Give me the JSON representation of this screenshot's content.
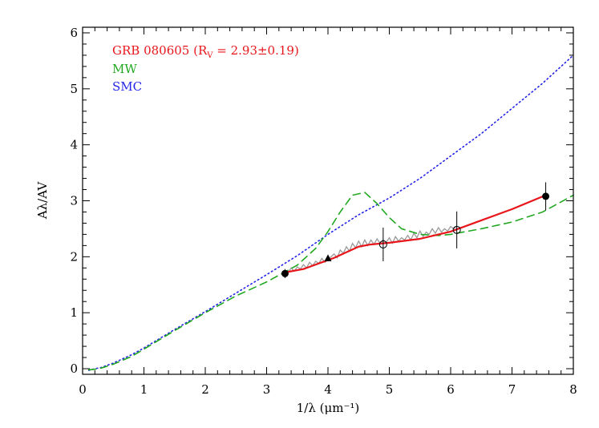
{
  "chart_data": {
    "type": "line",
    "xlabel": "1/λ (μm⁻¹)",
    "ylabel": "Aλ/AV",
    "xlim": [
      0,
      8
    ],
    "ylim": [
      -0.1,
      6.1
    ],
    "x_ticks": [
      "0",
      "1",
      "2",
      "3",
      "4",
      "5",
      "6",
      "7",
      "8"
    ],
    "y_ticks": [
      "0",
      "1",
      "2",
      "3",
      "4",
      "5",
      "6"
    ],
    "legend": {
      "placement": "top-left",
      "entries": [
        {
          "label_main": "GRB 080605 (R",
          "label_sub": "V",
          "label_tail": " = 2.93±0.19)",
          "color": "#e8161b"
        },
        {
          "label_main": "MW",
          "color": "#22a822"
        },
        {
          "label_main": "SMC",
          "color": "#2424e8"
        }
      ]
    },
    "series": [
      {
        "name": "SMC",
        "color": "#2424e8",
        "style": "dotted",
        "x": [
          0.1,
          0.2,
          0.3,
          0.5,
          0.8,
          1.0,
          1.5,
          2.0,
          2.5,
          3.0,
          3.5,
          4.0,
          4.5,
          5.0,
          5.5,
          6.0,
          6.5,
          7.0,
          7.5,
          8.0
        ],
        "y": [
          -0.03,
          0.0,
          0.02,
          0.1,
          0.25,
          0.37,
          0.7,
          1.02,
          1.35,
          1.68,
          2.02,
          2.4,
          2.75,
          3.05,
          3.4,
          3.8,
          4.2,
          4.65,
          5.1,
          5.6
        ]
      },
      {
        "name": "MW",
        "color": "#22a822",
        "style": "dashed",
        "x": [
          0.1,
          0.2,
          0.3,
          0.5,
          0.8,
          1.0,
          1.5,
          2.0,
          2.5,
          3.0,
          3.5,
          3.8,
          4.0,
          4.2,
          4.4,
          4.6,
          4.8,
          5.0,
          5.2,
          5.5,
          5.8,
          6.0,
          6.5,
          7.0,
          7.5,
          8.0
        ],
        "y": [
          -0.02,
          -0.01,
          0.01,
          0.08,
          0.22,
          0.35,
          0.68,
          1.0,
          1.3,
          1.55,
          1.85,
          2.15,
          2.45,
          2.8,
          3.1,
          3.15,
          2.95,
          2.7,
          2.5,
          2.4,
          2.38,
          2.4,
          2.5,
          2.62,
          2.8,
          3.1
        ]
      },
      {
        "name": "GRB 080605",
        "color": "#e8161b",
        "style": "solid",
        "x": [
          3.3,
          3.6,
          3.9,
          4.1,
          4.3,
          4.5,
          4.7,
          5.0,
          5.5,
          6.0,
          6.5,
          7.0,
          7.55
        ],
        "y": [
          1.72,
          1.78,
          1.9,
          1.98,
          2.08,
          2.18,
          2.22,
          2.25,
          2.32,
          2.45,
          2.65,
          2.85,
          3.1
        ]
      }
    ],
    "spectrum": {
      "name": "spectrum",
      "color": "#9a9a9a",
      "x": [
        3.3,
        3.35,
        3.4,
        3.45,
        3.5,
        3.55,
        3.6,
        3.65,
        3.7,
        3.75,
        3.8,
        3.85,
        3.9,
        3.95,
        4.0,
        4.05,
        4.1,
        4.15,
        4.2,
        4.25,
        4.3,
        4.35,
        4.4,
        4.45,
        4.5,
        4.55,
        4.6,
        4.65,
        4.7,
        4.75,
        4.8,
        4.85,
        4.9,
        4.95,
        5.0,
        5.05,
        5.1,
        5.15,
        5.2,
        5.25,
        5.3,
        5.35,
        5.4,
        5.45,
        5.5,
        5.55,
        5.6,
        5.65,
        5.7,
        5.75,
        5.8,
        5.85,
        5.9,
        5.95,
        6.0,
        6.05,
        6.1
      ],
      "y": [
        1.74,
        1.72,
        1.8,
        1.74,
        1.82,
        1.78,
        1.86,
        1.8,
        1.9,
        1.84,
        1.92,
        1.88,
        1.97,
        1.9,
        1.95,
        2.0,
        2.05,
        1.98,
        2.12,
        2.06,
        2.18,
        2.1,
        2.24,
        2.16,
        2.28,
        2.18,
        2.3,
        2.2,
        2.3,
        2.22,
        2.32,
        2.24,
        2.3,
        2.26,
        2.34,
        2.24,
        2.36,
        2.28,
        2.34,
        2.3,
        2.38,
        2.3,
        2.42,
        2.34,
        2.46,
        2.36,
        2.44,
        2.4,
        2.5,
        2.42,
        2.52,
        2.44,
        2.5,
        2.46,
        2.54,
        2.5,
        2.55
      ]
    },
    "points": [
      {
        "x": 3.3,
        "y": 1.7,
        "yerr": 0.08,
        "marker": "filled-circle"
      },
      {
        "x": 4.0,
        "y": 1.97,
        "yerr": 0.05,
        "marker": "filled-triangle"
      },
      {
        "x": 4.9,
        "y": 2.22,
        "yerr": 0.3,
        "marker": "open-circle"
      },
      {
        "x": 6.1,
        "y": 2.48,
        "yerr": 0.33,
        "marker": "open-circle"
      },
      {
        "x": 7.55,
        "y": 3.08,
        "yerr": 0.25,
        "marker": "filled-circle"
      }
    ]
  }
}
